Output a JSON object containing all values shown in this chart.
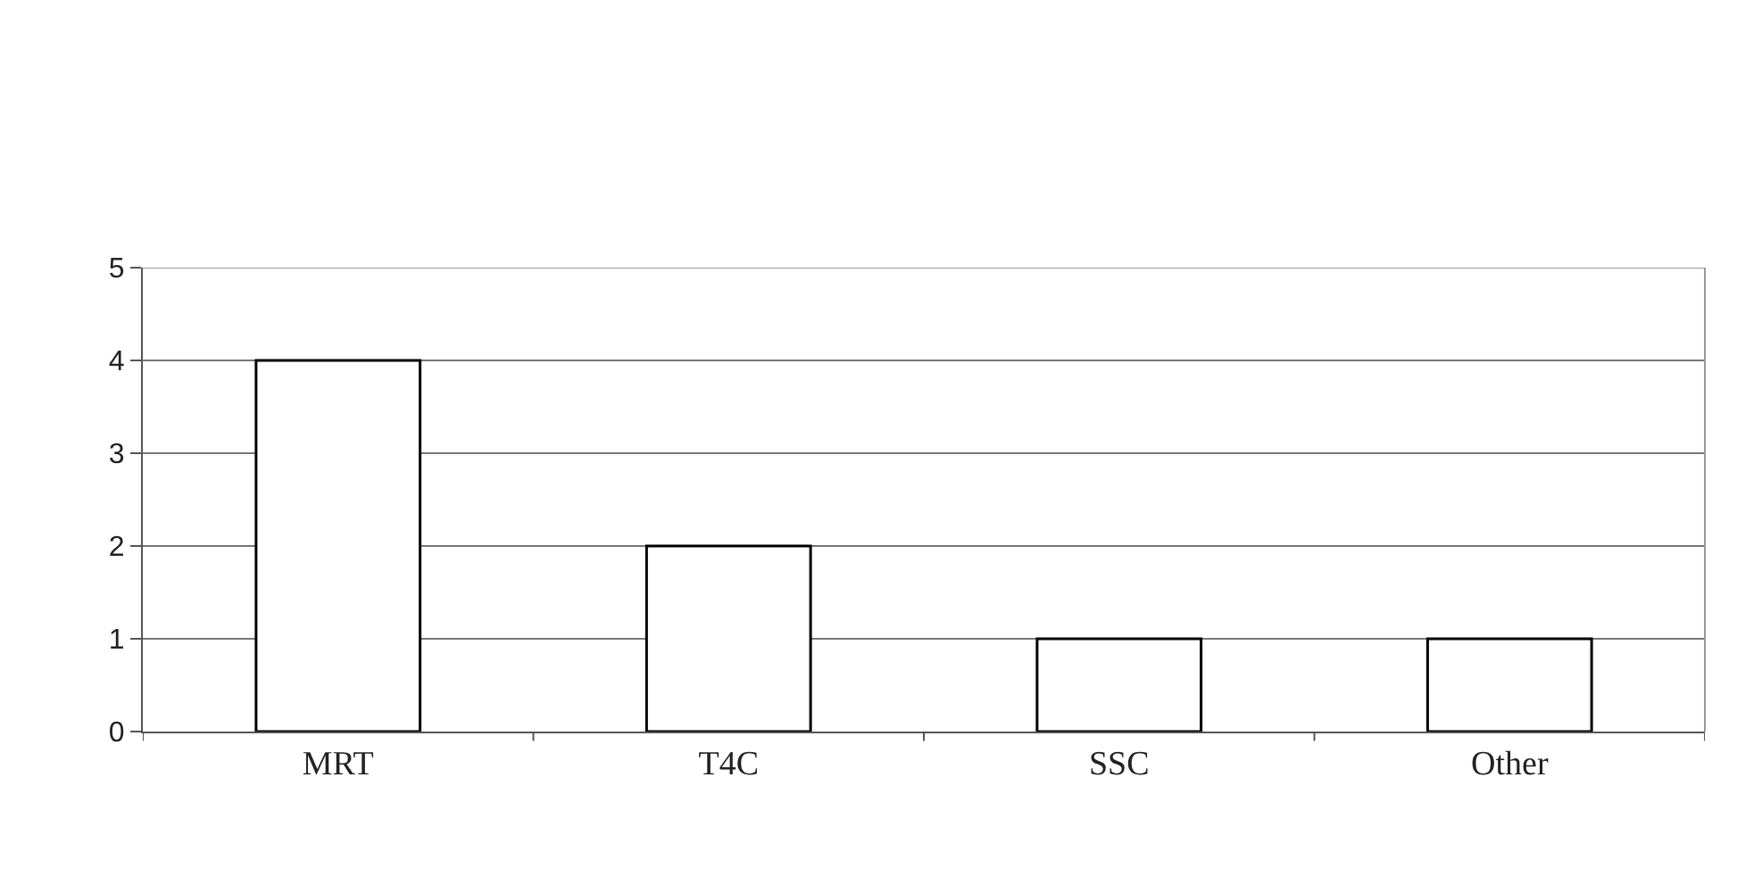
{
  "chart_data": {
    "type": "bar",
    "categories": [
      "MRT",
      "T4C",
      "SSC",
      "Other"
    ],
    "values": [
      4,
      2,
      1,
      1
    ],
    "color": "#ffffff",
    "ylim": [
      0,
      5
    ],
    "yticks": [
      0,
      1,
      2,
      3,
      4,
      5
    ],
    "grid": "y"
  }
}
